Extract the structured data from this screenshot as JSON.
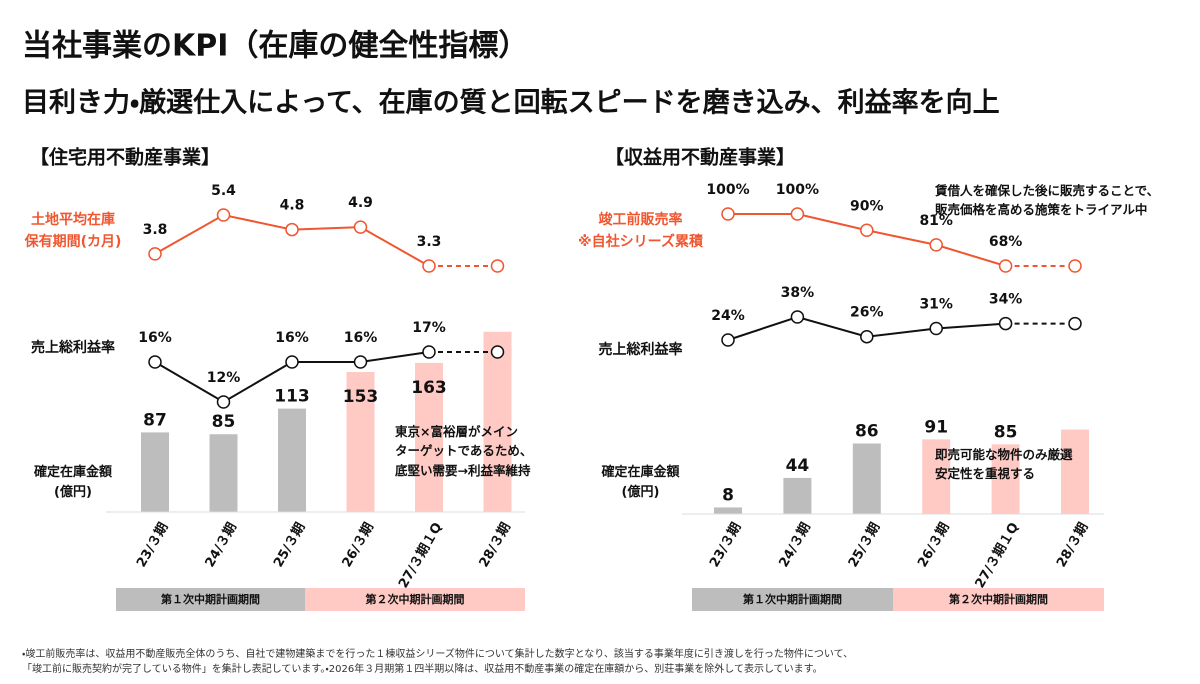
{
  "title": "当社事業のKPI（在庫の健全性指標）",
  "subtitle": "目利き力・厳選仕入によって、在庫の質と回転スピードを磨き込み、利益率を向上",
  "chart_data": [
    {
      "type": "bar",
      "title": "【住宅用不動産事業】",
      "categories": [
        "23/３期",
        "24/３期",
        "25/３期",
        "26/３期",
        "27/３期１Q",
        "28/３期"
      ],
      "series": [
        {
          "name": "確定在庫金額\n(億円)",
          "type": "bar",
          "values": [
            87,
            85,
            113,
            153,
            163,
            197
          ],
          "value_labels": [
            "87",
            "85",
            "113",
            "153",
            "163",
            null
          ],
          "colors": [
            "#bdbdbd",
            "#bdbdbd",
            "#bdbdbd",
            "#ffcac4",
            "#ffcac4",
            "#ffcac4"
          ]
        },
        {
          "name": "土地平均在庫\n保有期間(カ月)",
          "type": "line",
          "color": "#f0562f",
          "values": [
            3.8,
            5.4,
            4.8,
            4.9,
            3.3,
            3.3
          ],
          "value_labels": [
            "3.8",
            "5.4",
            "4.8",
            "4.9",
            "3.3",
            null
          ],
          "dashed_from": 4
        },
        {
          "name": "売上総利益率",
          "type": "line",
          "color": "#111111",
          "values": [
            16,
            12,
            16,
            16,
            17,
            17
          ],
          "value_labels": [
            "16%",
            "12%",
            "16%",
            "16%",
            "17%",
            null
          ],
          "dashed_from": 4
        }
      ],
      "annotations": [
        "東京×富裕層がメイン\nターゲットであるため、\n底堅い需要→利益率維持"
      ],
      "periods": [
        {
          "label": "第１次中期計画期間",
          "from": 0,
          "to": 2,
          "color": "#bdbdbd"
        },
        {
          "label": "第２次中期計画期間",
          "from": 3,
          "to": 5,
          "color": "#ffcac4"
        }
      ]
    },
    {
      "type": "bar",
      "title": "【収益用不動産事業】",
      "categories": [
        "23/３期",
        "24/３期",
        "25/３期",
        "26/３期",
        "27/３期１Q",
        "28/３期"
      ],
      "series": [
        {
          "name": "確定在庫金額\n(億円)",
          "type": "bar",
          "values": [
            8,
            44,
            86,
            91,
            85,
            103
          ],
          "value_labels": [
            "8",
            "44",
            "86",
            "91",
            "85",
            null
          ],
          "colors": [
            "#bdbdbd",
            "#bdbdbd",
            "#bdbdbd",
            "#ffcac4",
            "#ffcac4",
            "#ffcac4"
          ]
        },
        {
          "name": "竣工前販売率\n※自社シリーズ累積",
          "type": "line",
          "color": "#f0562f",
          "values": [
            100,
            100,
            90,
            81,
            68,
            68
          ],
          "value_labels": [
            "100%",
            "100%",
            "90%",
            "81%",
            "68%",
            null
          ],
          "dashed_from": 4
        },
        {
          "name": "売上総利益率",
          "type": "line",
          "color": "#111111",
          "values": [
            24,
            38,
            26,
            31,
            34,
            34
          ],
          "value_labels": [
            "24%",
            "38%",
            "26%",
            "31%",
            "34%",
            null
          ],
          "dashed_from": 4
        }
      ],
      "annotations": [
        "賃借人を確保した後に販売することで、\n販売価格を高める施策をトライアル中",
        "即売可能な物件のみ厳選\n安定性を重視する"
      ],
      "periods": [
        {
          "label": "第１次中期計画期間",
          "from": 0,
          "to": 2,
          "color": "#bdbdbd"
        },
        {
          "label": "第２次中期計画期間",
          "from": 3,
          "to": 5,
          "color": "#ffcac4"
        }
      ]
    }
  ],
  "footnote": "・竣工前販売率は、収益用不動産販売全体のうち、自社で建物建築までを行った１棟収益シリーズ物件について集計した数字となり、該当する事業年度に引き渡しを行った物件について、\n「竣工前に販売契約が完了している物件」を集計し表記しています。・2026年３月期第１四半期以降は、収益用不動産事業の確定在庫額から、別荘事業を除外して表示しています。"
}
